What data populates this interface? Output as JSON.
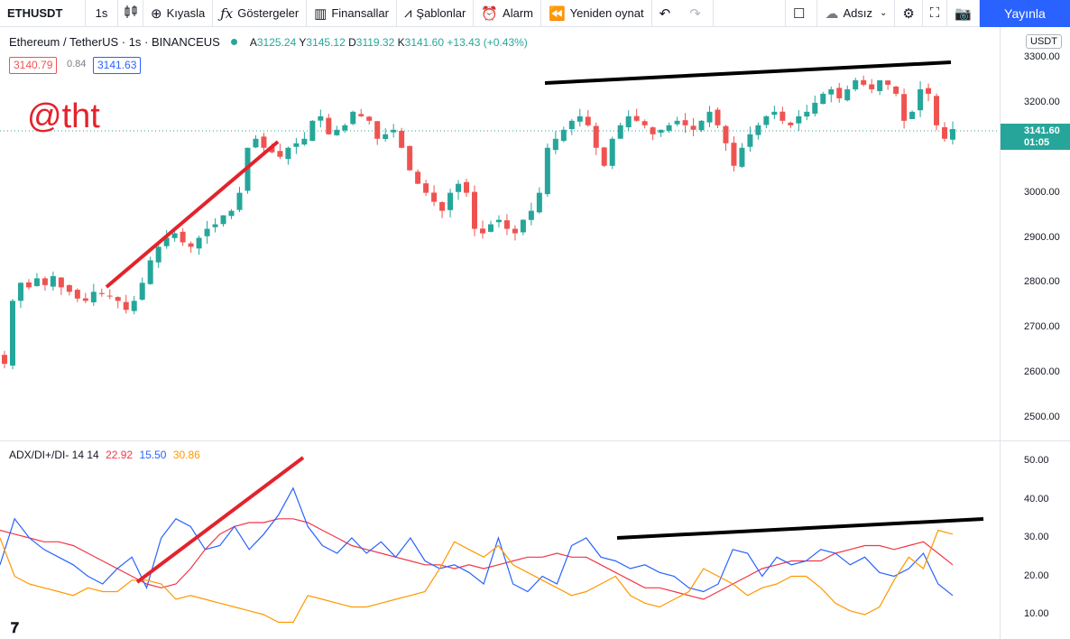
{
  "toolbar": {
    "symbol": "ETHUSDT",
    "interval": "1s",
    "compare": "Kıyasla",
    "indicators": "Göstergeler",
    "financials": "Finansallar",
    "templates": "Şablonlar",
    "alert": "Alarm",
    "replay": "Yeniden oynat",
    "layout_name": "Adsız",
    "publish": "Yayınla",
    "icons": [
      "candles-icon",
      "plus-circle-icon",
      "fx-icon",
      "bars-icon",
      "templates-icon",
      "alarm-icon",
      "replay-icon",
      "undo-icon",
      "redo-icon",
      "square-icon",
      "cloud-icon",
      "settings-icon",
      "fullscreen-icon",
      "camera-icon"
    ]
  },
  "legend": {
    "title": "Ethereum / TetherUS · 1s · BINANCEUS",
    "o_label": "A",
    "o": "3125.24",
    "h_label": "Y",
    "h": "3145.12",
    "l_label": "D",
    "l": "3119.32",
    "c_label": "K",
    "c": "3141.60",
    "change": "+13.43 (+0.43%)",
    "bid": "3140.79",
    "spread": "0.84",
    "ask": "3141.63"
  },
  "watermark": "@tht",
  "price_axis": {
    "currency": "USDT",
    "ticks": [
      "3300.00",
      "3200.00",
      "3100.00",
      "3000.00",
      "2900.00",
      "2800.00",
      "2700.00",
      "2600.00",
      "2500.00"
    ],
    "current_price": "3141.60",
    "countdown": "01:05"
  },
  "adx": {
    "name": "ADX/DI+/DI- 14 14",
    "adx_value": "22.92",
    "diplus_value": "15.50",
    "diminus_value": "30.86",
    "ticks": [
      "50.00",
      "40.00",
      "30.00",
      "20.00",
      "10.00"
    ]
  },
  "colors": {
    "up": "#26a69a",
    "down": "#ef5350",
    "adx": "#f23645",
    "diplus": "#2962ff",
    "diminus": "#ff9800",
    "drawing_red": "#e3232c",
    "drawing_black": "#000000"
  },
  "chart_data": [
    {
      "type": "candlestick",
      "title": "Ethereum / TetherUS · 1s · BINANCEUS",
      "ylim": [
        2480,
        3330
      ],
      "close_path": [
        2620,
        2760,
        2800,
        2790,
        2810,
        2795,
        2815,
        2790,
        2780,
        2765,
        2760,
        2780,
        2775,
        2770,
        2760,
        2740,
        2760,
        2800,
        2850,
        2880,
        2900,
        2910,
        2890,
        2880,
        2900,
        2920,
        2930,
        2950,
        2960,
        3000,
        3100,
        3120,
        3100,
        3090,
        3080,
        3100,
        3110,
        3120,
        3160,
        3170,
        3130,
        3140,
        3150,
        3180,
        3170,
        3160,
        3120,
        3130,
        3140,
        3100,
        3050,
        3020,
        3000,
        2980,
        2960,
        3000,
        3020,
        3000,
        2920,
        2910,
        2930,
        2940,
        2920,
        2910,
        2940,
        2960,
        3000,
        3100,
        3120,
        3140,
        3160,
        3170,
        3150,
        3100,
        3060,
        3120,
        3150,
        3170,
        3160,
        3150,
        3130,
        3140,
        3150,
        3160,
        3150,
        3140,
        3160,
        3180,
        3150,
        3110,
        3060,
        3100,
        3130,
        3150,
        3170,
        3180,
        3160,
        3150,
        3170,
        3180,
        3200,
        3220,
        3230,
        3210,
        3230,
        3250,
        3240,
        3230,
        3250,
        3240,
        3220,
        3160,
        3180,
        3230,
        3220,
        3150,
        3120,
        3141.6
      ]
    },
    {
      "type": "line",
      "title": "ADX/DI+/DI- 14 14",
      "ylim": [
        6,
        53
      ],
      "series": [
        {
          "name": "ADX",
          "values": [
            32,
            31,
            30,
            29,
            29,
            28,
            26,
            24,
            22,
            20,
            18,
            17,
            18,
            22,
            27,
            31,
            33,
            34,
            34,
            35,
            35,
            34,
            32,
            30,
            28,
            27,
            26,
            25,
            24,
            23,
            23,
            22,
            23,
            22,
            23,
            24,
            25,
            25,
            26,
            25,
            25,
            23,
            21,
            19,
            17,
            17,
            16,
            15,
            14,
            16,
            18,
            20,
            22,
            23,
            24,
            24,
            24,
            26,
            27,
            28,
            28,
            27,
            28,
            29,
            26,
            23
          ]
        },
        {
          "name": "DI+",
          "values": [
            23,
            35,
            30,
            27,
            25,
            23,
            20,
            18,
            22,
            25,
            17,
            30,
            35,
            33,
            27,
            28,
            33,
            27,
            31,
            36,
            43,
            33,
            28,
            26,
            30,
            26,
            29,
            25,
            30,
            24,
            22,
            23,
            21,
            18,
            30,
            18,
            16,
            20,
            18,
            28,
            30,
            25,
            24,
            22,
            23,
            21,
            20,
            17,
            16,
            18,
            27,
            26,
            20,
            25,
            23,
            24,
            27,
            26,
            23,
            25,
            21,
            20,
            22,
            26,
            18,
            15
          ]
        },
        {
          "name": "DI-",
          "values": [
            30,
            20,
            18,
            17,
            16,
            15,
            17,
            16,
            16,
            19,
            19,
            18,
            14,
            15,
            14,
            13,
            12,
            11,
            10,
            8,
            8,
            15,
            14,
            13,
            12,
            12,
            13,
            14,
            15,
            16,
            22,
            29,
            27,
            25,
            28,
            23,
            21,
            19,
            17,
            15,
            16,
            18,
            20,
            15,
            13,
            12,
            14,
            16,
            22,
            20,
            18,
            15,
            17,
            18,
            20,
            20,
            17,
            13,
            11,
            10,
            12,
            19,
            25,
            22,
            32,
            31
          ]
        }
      ]
    }
  ]
}
